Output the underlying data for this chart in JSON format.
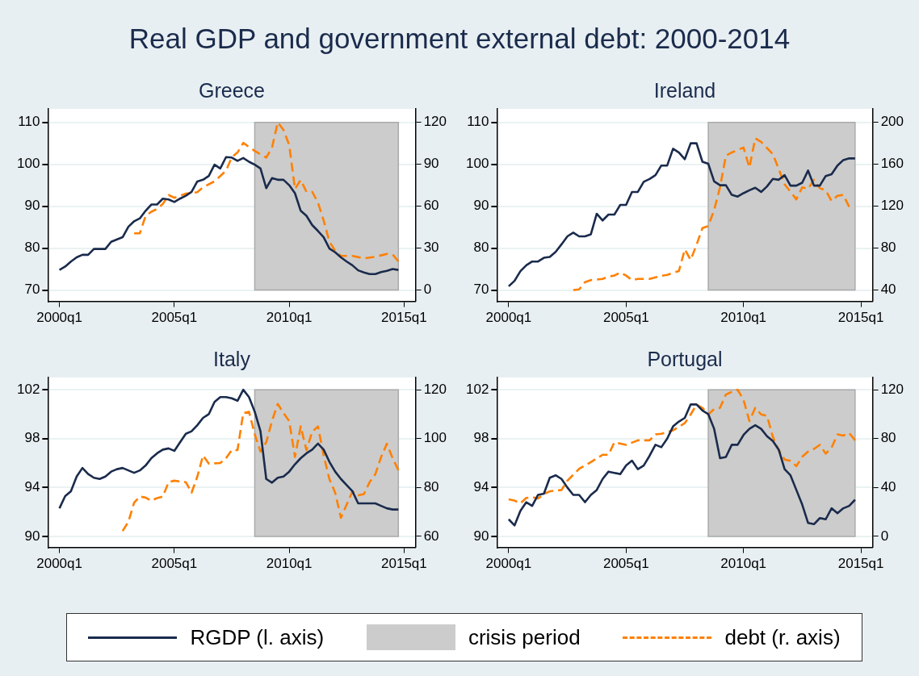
{
  "chart_data": [
    {
      "type": "other",
      "title": "Real GDP and government external debt: 2000-2014"
    },
    {
      "type": "line",
      "title": "Greece",
      "xlim": [
        "1999-07",
        "2015-07"
      ],
      "xticks": [
        {
          "value": "2000-01",
          "label": "2000q1"
        },
        {
          "value": "2005-01",
          "label": "2005q1"
        },
        {
          "value": "2010-01",
          "label": "2010q1"
        },
        {
          "value": "2015-01",
          "label": "2015q1"
        }
      ],
      "ylim": [
        67.3,
        113.2
      ],
      "yticks": [
        70,
        80,
        90,
        100,
        110
      ],
      "y2lim": [
        -8.1,
        129.6
      ],
      "y2ticks": [
        0,
        30,
        60,
        90,
        120
      ],
      "grid": "y",
      "legend": "bottom",
      "bands": [
        {
          "axis": "x",
          "from": "2008-07",
          "to": "2014-10",
          "label": "crisis period",
          "color": "#cccccc"
        }
      ],
      "series": [
        {
          "name": "RGDP (l. axis)",
          "color": "#1a2b4c",
          "line_style": "solid",
          "x": [
            "2000-01",
            "2000-04",
            "2000-07",
            "2000-10",
            "2001-01",
            "2001-04",
            "2001-07",
            "2002-01",
            "2002-04",
            "2002-10",
            "2003-01",
            "2003-04",
            "2003-07",
            "2003-10",
            "2004-01",
            "2004-04",
            "2004-07",
            "2004-10",
            "2005-01",
            "2005-04",
            "2005-07",
            "2005-10",
            "2006-01",
            "2006-04",
            "2006-07",
            "2006-10",
            "2007-01",
            "2007-04",
            "2007-07",
            "2007-10",
            "2008-01",
            "2008-04",
            "2008-07",
            "2008-10",
            "2009-01",
            "2009-04",
            "2009-07",
            "2009-10",
            "2010-01",
            "2010-04",
            "2010-07",
            "2010-10",
            "2011-01",
            "2011-04",
            "2011-07",
            "2011-10",
            "2012-01",
            "2012-04",
            "2012-07",
            "2012-10",
            "2013-01",
            "2013-04",
            "2013-07",
            "2013-10",
            "2014-01",
            "2014-04",
            "2014-07",
            "2014-10"
          ],
          "values": [
            74.8,
            75.6,
            76.8,
            77.8,
            78.4,
            78.4,
            79.8,
            79.8,
            81.5,
            82.6,
            85.1,
            86.4,
            87.1,
            88.9,
            90.4,
            90.4,
            91.8,
            91.6,
            91.0,
            91.8,
            92.5,
            93.4,
            95.9,
            96.3,
            97.2,
            99.9,
            99.0,
            101.7,
            101.6,
            100.8,
            101.5,
            100.6,
            99.9,
            99.0,
            94.3,
            96.7,
            96.3,
            96.3,
            95.0,
            93.1,
            88.9,
            87.7,
            85.5,
            84.1,
            82.6,
            79.9,
            79.0,
            77.8,
            76.8,
            75.9,
            74.7,
            74.2,
            73.8,
            73.8,
            74.3,
            74.6,
            75.0,
            74.8
          ]
        },
        {
          "name": "debt (r. axis)",
          "color": "#ff8000",
          "line_style": "dashed",
          "axis": "y2",
          "x": [
            "2003-04",
            "2003-07",
            "2003-10",
            "2004-01",
            "2004-04",
            "2004-07",
            "2004-10",
            "2005-01",
            "2005-07",
            "2006-01",
            "2006-04",
            "2006-10",
            "2007-04",
            "2007-07",
            "2007-10",
            "2008-01",
            "2008-07",
            "2009-01",
            "2009-04",
            "2009-07",
            "2009-10",
            "2010-01",
            "2010-04",
            "2010-07",
            "2010-10",
            "2011-01",
            "2011-04",
            "2011-07",
            "2011-10",
            "2012-01",
            "2012-04",
            "2012-10",
            "2013-04",
            "2013-10",
            "2014-04",
            "2014-07",
            "2014-10"
          ],
          "values": [
            40.6,
            40.6,
            53,
            56,
            58,
            61.6,
            68,
            66,
            69,
            70,
            73.5,
            77.8,
            85.4,
            95,
            98.4,
            105.3,
            99.5,
            94.8,
            101.8,
            120,
            114.6,
            103.8,
            72.3,
            78.8,
            70.3,
            70.3,
            62.7,
            49.7,
            34.6,
            28.1,
            24.4,
            24.4,
            22.7,
            23.8,
            25.9,
            25.5,
            20.5
          ]
        }
      ]
    },
    {
      "type": "line",
      "title": "Ireland",
      "xlim": [
        "1999-07",
        "2015-07"
      ],
      "xticks": [
        {
          "value": "2000-01",
          "label": "2000q1"
        },
        {
          "value": "2005-01",
          "label": "2005q1"
        },
        {
          "value": "2010-01",
          "label": "2010q1"
        },
        {
          "value": "2015-01",
          "label": "2015q1"
        }
      ],
      "ylim": [
        67.3,
        113.2
      ],
      "yticks": [
        70,
        80,
        90,
        100,
        110
      ],
      "y2lim": [
        29.2,
        212.8
      ],
      "y2ticks": [
        40,
        80,
        120,
        160,
        200
      ],
      "grid": "y",
      "legend": "bottom",
      "bands": [
        {
          "axis": "x",
          "from": "2008-07",
          "to": "2014-10",
          "color": "#cccccc"
        }
      ],
      "series": [
        {
          "name": "RGDP (l. axis)",
          "color": "#1a2b4c",
          "line_style": "solid",
          "x": [
            "2000-01",
            "2000-04",
            "2000-07",
            "2000-10",
            "2001-01",
            "2001-04",
            "2001-07",
            "2001-10",
            "2002-01",
            "2002-04",
            "2002-07",
            "2002-10",
            "2003-01",
            "2003-04",
            "2003-07",
            "2003-10",
            "2004-01",
            "2004-04",
            "2004-07",
            "2004-10",
            "2005-01",
            "2005-04",
            "2005-07",
            "2005-10",
            "2006-01",
            "2006-04",
            "2006-07",
            "2006-10",
            "2007-01",
            "2007-04",
            "2007-07",
            "2007-10",
            "2008-01",
            "2008-04",
            "2008-07",
            "2008-10",
            "2009-01",
            "2009-04",
            "2009-07",
            "2009-10",
            "2010-01",
            "2010-04",
            "2010-07",
            "2010-10",
            "2011-01",
            "2011-04",
            "2011-07",
            "2011-10",
            "2012-01",
            "2012-04",
            "2012-07",
            "2012-10",
            "2013-01",
            "2013-04",
            "2013-07",
            "2013-10",
            "2014-01",
            "2014-04",
            "2014-07",
            "2014-10"
          ],
          "values": [
            70.9,
            72.2,
            74.5,
            75.9,
            76.8,
            76.8,
            77.7,
            77.9,
            79.1,
            80.9,
            82.8,
            83.7,
            82.8,
            82.8,
            83.3,
            88.2,
            86.6,
            88.0,
            88.0,
            90.3,
            90.3,
            93.4,
            93.4,
            95.8,
            96.5,
            97.4,
            99.7,
            99.7,
            103.7,
            102.8,
            101.2,
            105.0,
            105.0,
            100.6,
            100.1,
            95.9,
            95.0,
            95.0,
            92.7,
            92.3,
            93.1,
            93.8,
            94.4,
            93.4,
            94.7,
            96.5,
            96.3,
            97.4,
            94.9,
            94.9,
            95.6,
            98.5,
            94.9,
            94.9,
            97.2,
            97.6,
            99.7,
            101.0,
            101.4,
            101.4
          ]
        },
        {
          "name": "debt (r. axis)",
          "color": "#ff8000",
          "line_style": "dashed",
          "axis": "y2",
          "x": [
            "2002-10",
            "2003-01",
            "2003-04",
            "2003-07",
            "2003-10",
            "2004-01",
            "2004-04",
            "2004-07",
            "2004-10",
            "2005-01",
            "2005-04",
            "2005-07",
            "2006-01",
            "2006-07",
            "2006-10",
            "2007-04",
            "2007-07",
            "2007-10",
            "2008-01",
            "2008-04",
            "2008-07",
            "2008-10",
            "2009-01",
            "2009-04",
            "2009-07",
            "2010-01",
            "2010-04",
            "2010-07",
            "2010-10",
            "2011-01",
            "2011-04",
            "2011-07",
            "2011-10",
            "2012-01",
            "2012-04",
            "2012-07",
            "2012-10",
            "2013-01",
            "2013-04",
            "2013-07",
            "2013-10",
            "2014-01",
            "2014-04",
            "2014-07"
          ],
          "values": [
            40,
            40.6,
            47.6,
            49.5,
            50,
            50.6,
            52.9,
            53.8,
            56.7,
            53.8,
            49.5,
            50.6,
            50.6,
            53.6,
            54.5,
            58.2,
            78.8,
            68.8,
            83.2,
            99.1,
            101.1,
            116.4,
            138,
            168.3,
            171.2,
            176,
            156.8,
            184.7,
            181.3,
            175.5,
            169.7,
            155.3,
            140.8,
            133.7,
            126.5,
            138,
            136.6,
            145.2,
            137.1,
            135.1,
            125,
            129.9,
            130.8,
            119.3
          ]
        }
      ]
    },
    {
      "type": "line",
      "title": "Italy",
      "xlim": [
        "1999-07",
        "2015-07"
      ],
      "xticks": [
        {
          "value": "2000-01",
          "label": "2000q1"
        },
        {
          "value": "2005-01",
          "label": "2005q1"
        },
        {
          "value": "2010-01",
          "label": "2010q1"
        },
        {
          "value": "2015-01",
          "label": "2015q1"
        }
      ],
      "ylim": [
        89.1,
        103
      ],
      "yticks": [
        90,
        94,
        98,
        102
      ],
      "y2lim": [
        55.5,
        125
      ],
      "y2ticks": [
        60,
        80,
        100,
        120
      ],
      "grid": "y",
      "legend": "bottom",
      "bands": [
        {
          "axis": "x",
          "from": "2008-07",
          "to": "2014-10",
          "color": "#cccccc"
        }
      ],
      "series": [
        {
          "name": "RGDP (l. axis)",
          "color": "#1a2b4c",
          "line_style": "solid",
          "x": [
            "2000-01",
            "2000-04",
            "2000-07",
            "2000-10",
            "2001-01",
            "2001-04",
            "2001-07",
            "2001-10",
            "2002-01",
            "2002-04",
            "2002-07",
            "2002-10",
            "2003-01",
            "2003-04",
            "2003-07",
            "2003-10",
            "2004-01",
            "2004-04",
            "2004-07",
            "2004-10",
            "2005-01",
            "2005-04",
            "2005-07",
            "2005-10",
            "2006-01",
            "2006-04",
            "2006-07",
            "2006-10",
            "2007-01",
            "2007-04",
            "2007-07",
            "2007-10",
            "2008-01",
            "2008-04",
            "2008-07",
            "2008-10",
            "2009-01",
            "2009-04",
            "2009-07",
            "2009-10",
            "2010-01",
            "2010-04",
            "2010-07",
            "2010-10",
            "2011-01",
            "2011-04",
            "2011-07",
            "2011-10",
            "2012-01",
            "2012-04",
            "2012-07",
            "2012-10",
            "2013-01",
            "2013-07",
            "2013-10",
            "2014-01",
            "2014-04",
            "2014-07",
            "2014-10"
          ],
          "values": [
            92.3,
            93.3,
            93.7,
            94.9,
            95.6,
            95.1,
            94.8,
            94.7,
            94.9,
            95.3,
            95.5,
            95.6,
            95.4,
            95.2,
            95.4,
            95.8,
            96.4,
            96.8,
            97.1,
            97.2,
            97.0,
            97.7,
            98.4,
            98.6,
            99.1,
            99.7,
            100.0,
            101.0,
            101.4,
            101.4,
            101.3,
            101.1,
            102.0,
            101.4,
            100.2,
            98.6,
            94.7,
            94.4,
            94.8,
            94.9,
            95.3,
            95.9,
            96.4,
            96.8,
            97.1,
            97.6,
            97.1,
            96.1,
            95.3,
            94.7,
            94.2,
            93.7,
            92.7,
            92.7,
            92.7,
            92.5,
            92.3,
            92.2,
            92.2
          ]
        },
        {
          "name": "debt (r. axis)",
          "color": "#ff8000",
          "line_style": "dashed",
          "axis": "y2",
          "x": [
            "2002-10",
            "2003-01",
            "2003-04",
            "2003-07",
            "2003-10",
            "2004-01",
            "2004-04",
            "2004-07",
            "2004-10",
            "2005-01",
            "2005-07",
            "2005-10",
            "2006-01",
            "2006-04",
            "2006-07",
            "2007-01",
            "2007-04",
            "2007-07",
            "2007-10",
            "2008-01",
            "2008-04",
            "2008-07",
            "2008-10",
            "2009-01",
            "2009-04",
            "2009-07",
            "2009-10",
            "2010-01",
            "2010-04",
            "2010-07",
            "2010-10",
            "2011-01",
            "2011-04",
            "2011-07",
            "2011-10",
            "2012-01",
            "2012-04",
            "2012-07",
            "2012-10",
            "2013-01",
            "2013-04",
            "2013-07",
            "2013-10",
            "2014-01",
            "2014-04",
            "2014-07",
            "2014-10"
          ],
          "values": [
            62.2,
            66,
            73.8,
            76.3,
            75.9,
            74.6,
            75.7,
            76.3,
            82.2,
            82.8,
            82.2,
            77.9,
            84.4,
            93.1,
            89.8,
            90,
            92,
            95.3,
            95.3,
            110.5,
            111,
            101.8,
            94.7,
            98.5,
            107.2,
            114.2,
            110.5,
            107.2,
            92.5,
            105,
            95.3,
            102.8,
            105,
            93.1,
            83.4,
            77.9,
            67.6,
            73,
            78.4,
            76.8,
            77.3,
            82.2,
            85.5,
            92.5,
            97.9,
            92,
            87.1
          ]
        }
      ]
    },
    {
      "type": "line",
      "title": "Portugal",
      "xlim": [
        "1999-07",
        "2015-07"
      ],
      "xticks": [
        {
          "value": "2000-01",
          "label": "2000q1"
        },
        {
          "value": "2005-01",
          "label": "2005q1"
        },
        {
          "value": "2010-01",
          "label": "2010q1"
        },
        {
          "value": "2015-01",
          "label": "2015q1"
        }
      ],
      "ylim": [
        89.1,
        103
      ],
      "yticks": [
        90,
        94,
        98,
        102
      ],
      "y2lim": [
        -9,
        130
      ],
      "y2ticks": [
        0,
        40,
        80,
        120
      ],
      "grid": "y",
      "legend": "bottom",
      "bands": [
        {
          "axis": "x",
          "from": "2008-07",
          "to": "2014-10",
          "color": "#cccccc"
        }
      ],
      "series": [
        {
          "name": "RGDP (l. axis)",
          "color": "#1a2b4c",
          "line_style": "solid",
          "x": [
            "2000-01",
            "2000-04",
            "2000-07",
            "2000-10",
            "2001-01",
            "2001-04",
            "2001-07",
            "2001-10",
            "2002-01",
            "2002-04",
            "2002-07",
            "2002-10",
            "2003-01",
            "2003-04",
            "2003-07",
            "2003-10",
            "2004-01",
            "2004-04",
            "2004-07",
            "2004-10",
            "2005-01",
            "2005-04",
            "2005-07",
            "2005-10",
            "2006-01",
            "2006-04",
            "2006-07",
            "2006-10",
            "2007-01",
            "2007-04",
            "2007-07",
            "2007-10",
            "2008-01",
            "2008-04",
            "2008-07",
            "2008-10",
            "2009-01",
            "2009-04",
            "2009-07",
            "2009-10",
            "2010-01",
            "2010-04",
            "2010-07",
            "2010-10",
            "2011-01",
            "2011-04",
            "2011-07",
            "2011-10",
            "2012-01",
            "2012-04",
            "2012-07",
            "2012-10",
            "2013-01",
            "2013-04",
            "2013-07",
            "2013-10",
            "2014-01",
            "2014-04",
            "2014-07",
            "2014-10"
          ],
          "values": [
            91.4,
            90.9,
            92.1,
            92.8,
            92.5,
            93.4,
            93.5,
            94.8,
            95.0,
            94.7,
            94.0,
            93.4,
            93.4,
            92.8,
            93.4,
            93.8,
            94.7,
            95.3,
            95.2,
            95.1,
            95.8,
            96.2,
            95.5,
            95.8,
            96.6,
            97.5,
            97.3,
            98.0,
            99.0,
            99.4,
            99.7,
            100.8,
            100.8,
            100.3,
            100.0,
            98.8,
            96.4,
            96.5,
            97.5,
            97.5,
            98.3,
            98.8,
            99.1,
            98.8,
            98.2,
            97.8,
            97.1,
            95.5,
            95.0,
            93.8,
            92.6,
            91.1,
            91.0,
            91.5,
            91.4,
            92.3,
            91.9,
            92.3,
            92.5,
            93.0
          ]
        },
        {
          "name": "debt (r. axis)",
          "color": "#ff8000",
          "line_style": "dashed",
          "axis": "y2",
          "x": [
            "2000-01",
            "2000-04",
            "2000-07",
            "2000-10",
            "2001-01",
            "2001-04",
            "2001-07",
            "2001-10",
            "2002-04",
            "2002-07",
            "2003-01",
            "2003-07",
            "2004-01",
            "2004-04",
            "2004-07",
            "2005-01",
            "2005-07",
            "2006-01",
            "2006-04",
            "2006-07",
            "2007-01",
            "2007-07",
            "2007-10",
            "2008-01",
            "2008-04",
            "2008-07",
            "2008-10",
            "2009-01",
            "2009-04",
            "2009-07",
            "2009-10",
            "2010-01",
            "2010-04",
            "2010-07",
            "2010-10",
            "2011-01",
            "2011-04",
            "2011-07",
            "2011-10",
            "2012-01",
            "2012-04",
            "2012-07",
            "2012-10",
            "2013-01",
            "2013-04",
            "2013-07",
            "2013-10",
            "2014-01",
            "2014-04",
            "2014-07",
            "2014-10"
          ],
          "values": [
            30.4,
            29.3,
            27.1,
            31.5,
            32.1,
            31,
            34.7,
            36.9,
            38,
            45.6,
            55.3,
            60.8,
            66.8,
            66.8,
            77,
            74.9,
            78.6,
            78.6,
            83.5,
            84,
            86.8,
            92.7,
            99.8,
            107.8,
            105.2,
            99.8,
            104.2,
            105.2,
            116.1,
            118.3,
            120,
            111.8,
            94.4,
            105.2,
            99.8,
            98.7,
            81.4,
            70.5,
            62.9,
            61.8,
            57.5,
            65.1,
            69.4,
            71.6,
            74.9,
            67.7,
            72.7,
            83.5,
            82.5,
            84.6,
            78.6
          ]
        }
      ]
    }
  ]
}
